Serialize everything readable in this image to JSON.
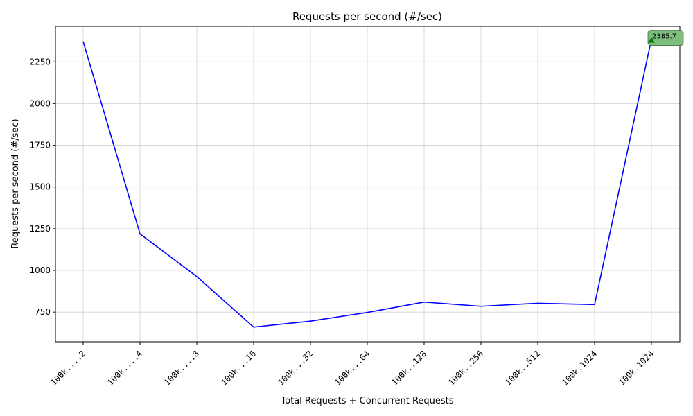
{
  "chart_data": {
    "type": "line",
    "title": "Requests per second (#/sec)",
    "xlabel": "Total Requests + Concurrent Requests",
    "ylabel": "Requests per second (#/sec)",
    "categories": [
      "100k....2",
      "100k....4",
      "100k....8",
      "100k...16",
      "100k...32",
      "100k...64",
      "100k..128",
      "100k..256",
      "100k..512",
      "100k.1024",
      "100k.1024"
    ],
    "series": [
      {
        "values": [
          2372,
          1219,
          963,
          660,
          696,
          748,
          810,
          785,
          803,
          795,
          2385.7
        ],
        "color": "#0000ff"
      }
    ],
    "yticks": [
      750,
      1000,
      1250,
      1500,
      1750,
      2000,
      2250
    ],
    "ylim": [
      572,
      2463
    ],
    "grid": true,
    "annotation": {
      "text": "2385.7",
      "point_index": 10,
      "marker_color": "#008000",
      "box_color": "#7dbd7d"
    }
  }
}
